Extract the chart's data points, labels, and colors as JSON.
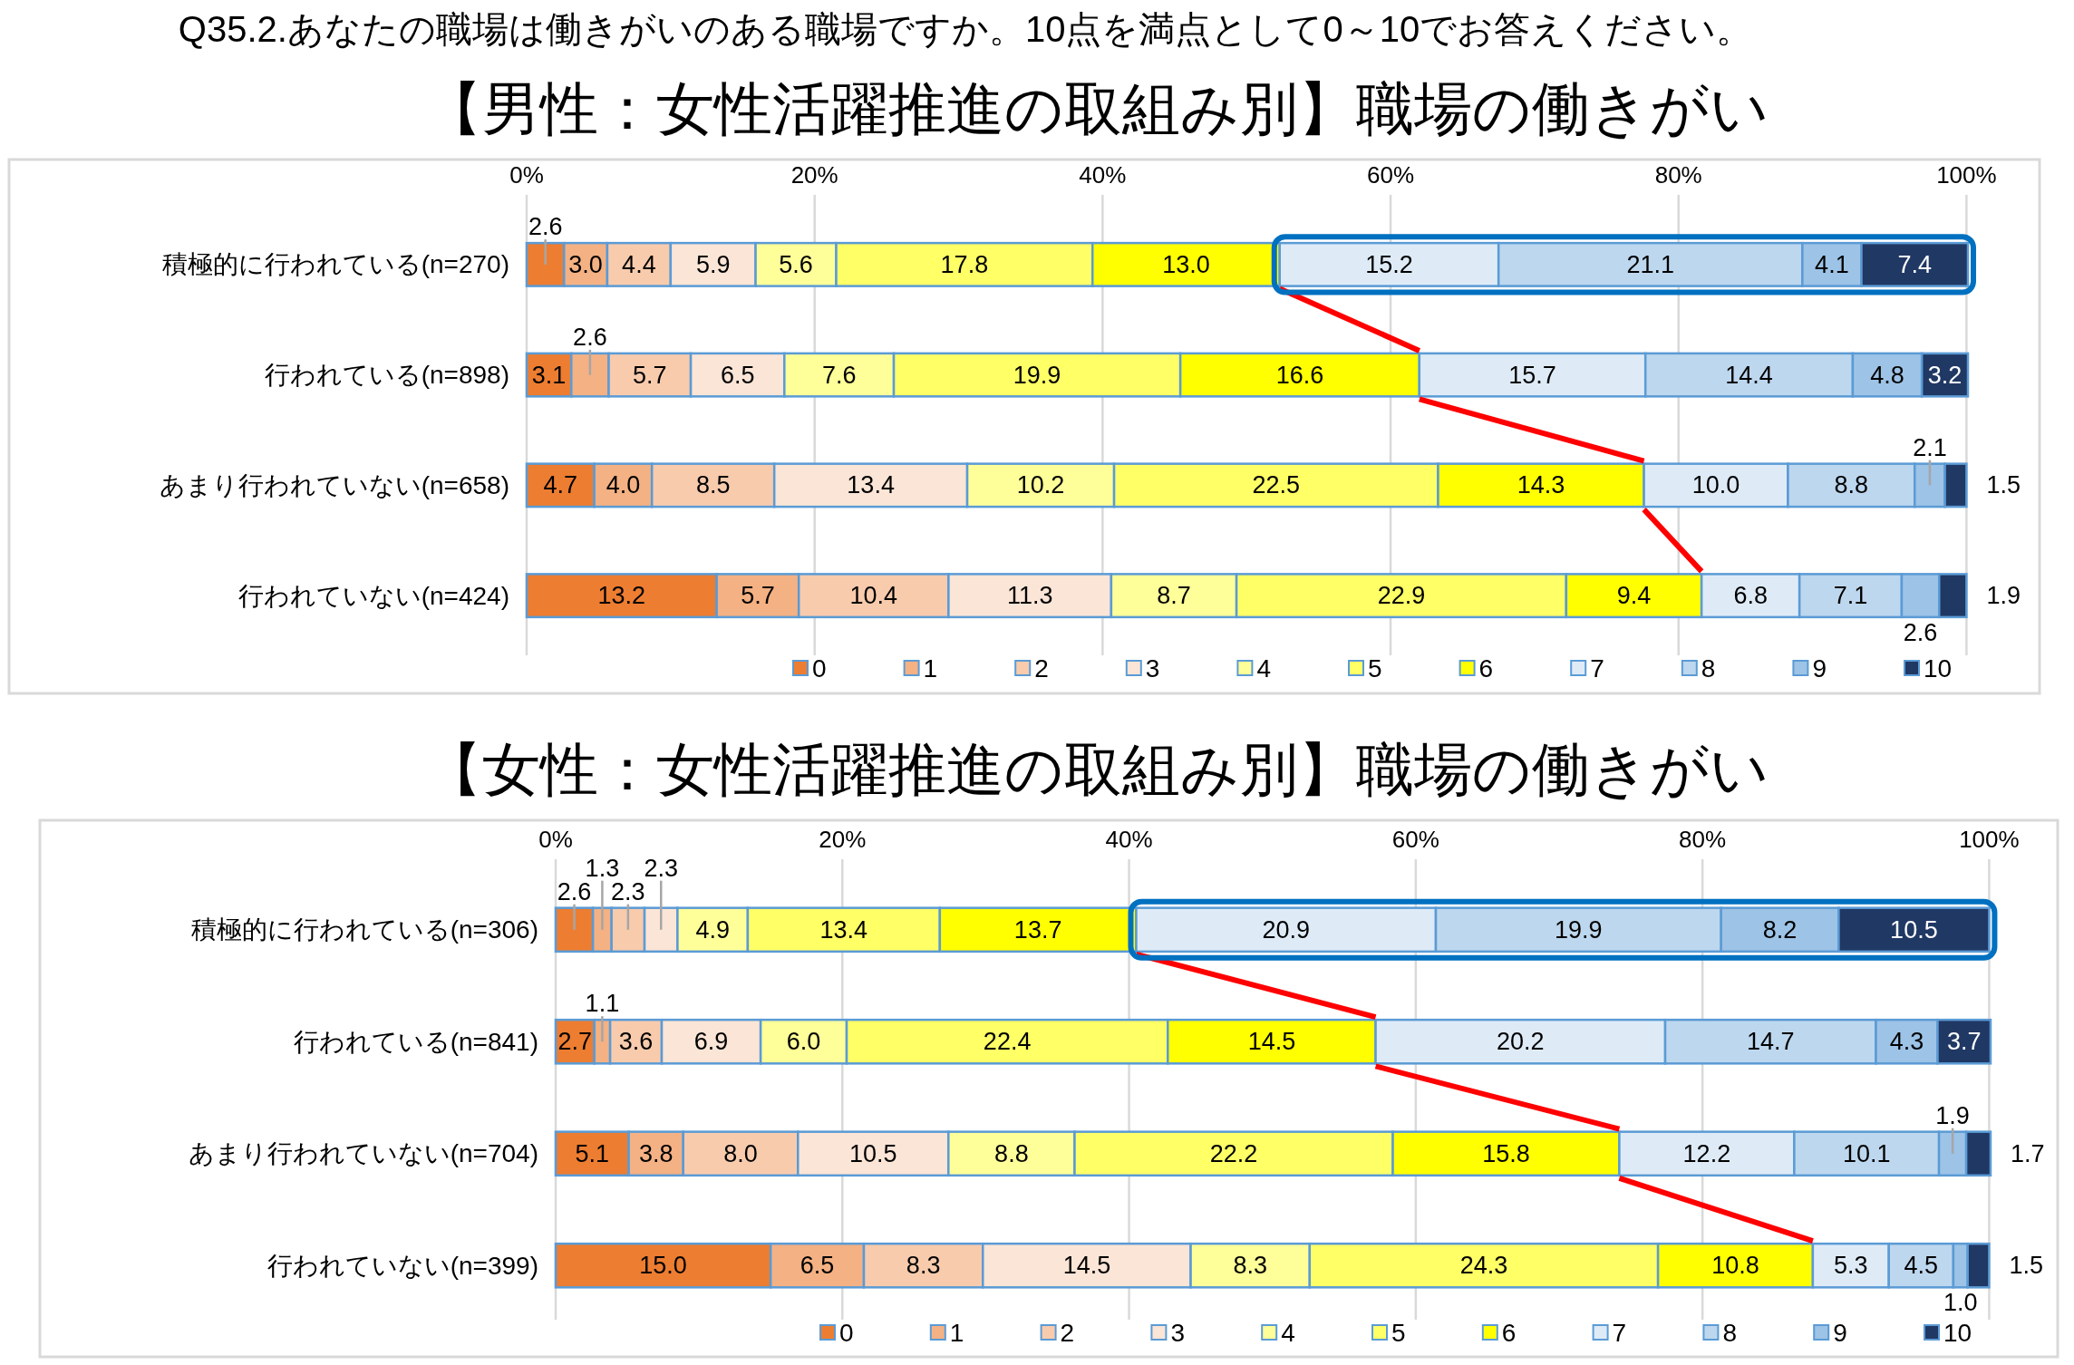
{
  "chart_data": [
    {
      "type": "bar",
      "orientation": "horizontal",
      "stacked": true,
      "title": "【男性：女性活躍推進の取組み別】職場の働きがい",
      "annotations": [
        "Q35.2.あなたの職場は働きがいのある職場ですか。10点を満点として0～10でお答えください。"
      ],
      "categories": [
        "積極的に行われている(n=270)",
        "行われている(n=898)",
        "あまり行われていない(n=658)",
        "行われていない(n=424)"
      ],
      "series": [
        {
          "name": "0",
          "color": "#ed7d31",
          "values": [
            2.6,
            3.1,
            4.7,
            13.2
          ],
          "value_labels": [
            "2.6",
            "3.1",
            "4.7",
            "13.2"
          ]
        },
        {
          "name": "1",
          "color": "#f4b183",
          "values": [
            3.0,
            2.6,
            4.0,
            5.7
          ],
          "value_labels": [
            "3.0",
            "2.6",
            "4.0",
            "5.7"
          ]
        },
        {
          "name": "2",
          "color": "#f8cbad",
          "values": [
            4.4,
            5.7,
            8.5,
            10.4
          ],
          "value_labels": [
            "4.4",
            "5.7",
            "8.5",
            "10.4"
          ]
        },
        {
          "name": "3",
          "color": "#fbe5d6",
          "values": [
            5.9,
            6.5,
            13.4,
            11.3
          ],
          "value_labels": [
            "5.9",
            "6.5",
            "13.4",
            "11.3"
          ]
        },
        {
          "name": "4",
          "color": "#ffff99",
          "values": [
            5.6,
            7.6,
            10.2,
            8.7
          ],
          "value_labels": [
            "5.6",
            "7.6",
            "10.2",
            "8.7"
          ]
        },
        {
          "name": "5",
          "color": "#ffff66",
          "values": [
            17.8,
            19.9,
            22.5,
            22.9
          ],
          "value_labels": [
            "17.8",
            "19.9",
            "22.5",
            "22.9"
          ]
        },
        {
          "name": "6",
          "color": "#ffff00",
          "values": [
            13.0,
            16.6,
            14.3,
            9.4
          ],
          "value_labels": [
            "13.0",
            "16.6",
            "14.3",
            "9.4"
          ]
        },
        {
          "name": "7",
          "color": "#deebf7",
          "values": [
            15.2,
            15.7,
            10.0,
            6.8
          ],
          "value_labels": [
            "15.2",
            "15.7",
            "10.0",
            "6.8"
          ]
        },
        {
          "name": "8",
          "color": "#bdd7ee",
          "values": [
            21.1,
            14.4,
            8.8,
            7.1
          ],
          "value_labels": [
            "21.1",
            "14.4",
            "8.8",
            "7.1"
          ]
        },
        {
          "name": "9",
          "color": "#9dc3e6",
          "values": [
            4.1,
            4.8,
            2.1,
            2.6
          ],
          "value_labels": [
            "4.1",
            "4.8",
            "2.1",
            "2.6"
          ]
        },
        {
          "name": "10",
          "color": "#203864",
          "values": [
            7.4,
            3.2,
            1.5,
            1.9
          ],
          "value_labels": [
            "7.4",
            "3.2",
            "1.5",
            "1.9"
          ]
        }
      ],
      "xlim": [
        0,
        100.1
      ],
      "xticks": [
        {
          "value": 0,
          "label": "0%"
        },
        {
          "value": 20,
          "label": "20%"
        },
        {
          "value": 40,
          "label": "40%"
        },
        {
          "value": 60,
          "label": "60%"
        },
        {
          "value": 80,
          "label": "80%"
        },
        {
          "value": 100,
          "label": "100%"
        }
      ],
      "grid": "x",
      "legend": "bottom"
    },
    {
      "type": "bar",
      "orientation": "horizontal",
      "stacked": true,
      "title": "【女性：女性活躍推進の取組み別】職場の働きがい",
      "categories": [
        "積極的に行われている(n=306)",
        "行われている(n=841)",
        "あまり行われていない(n=704)",
        "行われていない(n=399)"
      ],
      "series": [
        {
          "name": "0",
          "color": "#ed7d31",
          "values": [
            2.6,
            2.7,
            5.1,
            15.0
          ],
          "value_labels": [
            "2.6",
            "2.7",
            "5.1",
            "15.0"
          ]
        },
        {
          "name": "1",
          "color": "#f4b183",
          "values": [
            1.3,
            1.1,
            3.8,
            6.5
          ],
          "value_labels": [
            "1.3",
            "1.1",
            "3.8",
            "6.5"
          ]
        },
        {
          "name": "2",
          "color": "#f8cbad",
          "values": [
            2.3,
            3.6,
            8.0,
            8.3
          ],
          "value_labels": [
            "2.3",
            "3.6",
            "8.0",
            "8.3"
          ]
        },
        {
          "name": "3",
          "color": "#fbe5d6",
          "values": [
            2.3,
            6.9,
            10.5,
            14.5
          ],
          "value_labels": [
            "2.3",
            "6.9",
            "10.5",
            "14.5"
          ]
        },
        {
          "name": "4",
          "color": "#ffff99",
          "values": [
            4.9,
            6.0,
            8.8,
            8.3
          ],
          "value_labels": [
            "4.9",
            "6.0",
            "8.8",
            "8.3"
          ]
        },
        {
          "name": "5",
          "color": "#ffff66",
          "values": [
            13.4,
            22.4,
            22.2,
            24.3
          ],
          "value_labels": [
            "13.4",
            "22.4",
            "22.2",
            "24.3"
          ]
        },
        {
          "name": "6",
          "color": "#ffff00",
          "values": [
            13.7,
            14.5,
            15.8,
            10.8
          ],
          "value_labels": [
            "13.7",
            "14.5",
            "15.8",
            "10.8"
          ]
        },
        {
          "name": "7",
          "color": "#deebf7",
          "values": [
            20.9,
            20.2,
            12.2,
            5.3
          ],
          "value_labels": [
            "20.9",
            "20.2",
            "12.2",
            "5.3"
          ]
        },
        {
          "name": "8",
          "color": "#bdd7ee",
          "values": [
            19.9,
            14.7,
            10.1,
            4.5
          ],
          "value_labels": [
            "19.9",
            "14.7",
            "10.1",
            "4.5"
          ]
        },
        {
          "name": "9",
          "color": "#9dc3e6",
          "values": [
            8.2,
            4.3,
            1.9,
            1.0
          ],
          "value_labels": [
            "8.2",
            "4.3",
            "1.9",
            "1.0"
          ]
        },
        {
          "name": "10",
          "color": "#203864",
          "values": [
            10.5,
            3.7,
            1.7,
            1.5
          ],
          "value_labels": [
            "10.5",
            "3.7",
            "1.7",
            "1.5"
          ]
        }
      ],
      "xlim": [
        0,
        100.1
      ],
      "xticks": [
        {
          "value": 0,
          "label": "0%"
        },
        {
          "value": 20,
          "label": "20%"
        },
        {
          "value": 40,
          "label": "40%"
        },
        {
          "value": 60,
          "label": "60%"
        },
        {
          "value": 80,
          "label": "80%"
        },
        {
          "value": 100,
          "label": "100%"
        }
      ],
      "grid": "x",
      "legend": "bottom"
    }
  ]
}
